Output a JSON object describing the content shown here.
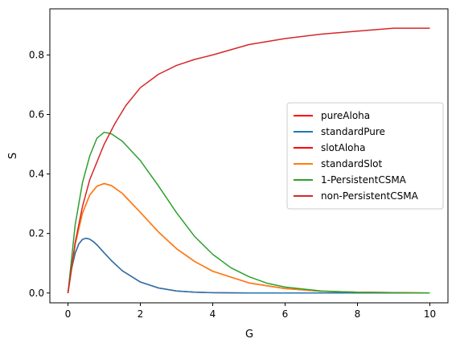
{
  "chart_data": {
    "type": "line",
    "title": "",
    "xlabel": "G",
    "ylabel": "S",
    "xlim": [
      -0.5,
      10.5
    ],
    "ylim": [
      -0.033,
      0.955
    ],
    "xticks": [
      0,
      2,
      4,
      6,
      8,
      10
    ],
    "yticks": [
      0.0,
      0.2,
      0.4,
      0.6,
      0.8
    ],
    "grid": false,
    "legend_position": "center-right",
    "series": [
      {
        "name": "pureAloha",
        "color": "#ff0000",
        "x": [
          0,
          0.1,
          0.2,
          0.3,
          0.4,
          0.5,
          0.6,
          0.7,
          0.8,
          1.0,
          1.2,
          1.5,
          2.0,
          2.5,
          3.0,
          3.5,
          4.0,
          5.0,
          6.0,
          8.0,
          10.0
        ],
        "y": [
          0,
          0.082,
          0.134,
          0.165,
          0.18,
          0.184,
          0.181,
          0.173,
          0.162,
          0.135,
          0.109,
          0.075,
          0.037,
          0.017,
          0.007,
          0.003,
          0.001,
          0.0,
          0.0,
          0.0,
          0.0
        ]
      },
      {
        "name": "standardPure",
        "color": "#1f77b4",
        "x": [
          0,
          0.1,
          0.2,
          0.3,
          0.4,
          0.5,
          0.6,
          0.7,
          0.8,
          1.0,
          1.2,
          1.5,
          2.0,
          2.5,
          3.0,
          3.5,
          4.0,
          5.0,
          6.0,
          8.0,
          10.0
        ],
        "y": [
          0,
          0.082,
          0.134,
          0.165,
          0.18,
          0.184,
          0.181,
          0.173,
          0.162,
          0.135,
          0.109,
          0.075,
          0.037,
          0.017,
          0.007,
          0.003,
          0.001,
          0.0,
          0.0,
          0.0,
          0.0
        ]
      },
      {
        "name": "slotAloha",
        "color": "#ff0000",
        "x": [
          0,
          0.2,
          0.4,
          0.6,
          0.8,
          1.0,
          1.2,
          1.5,
          2.0,
          2.5,
          3.0,
          3.5,
          4.0,
          5.0,
          6.0,
          7.0,
          8.0,
          10.0
        ],
        "y": [
          0,
          0.164,
          0.268,
          0.329,
          0.359,
          0.368,
          0.361,
          0.335,
          0.271,
          0.205,
          0.149,
          0.106,
          0.073,
          0.034,
          0.015,
          0.006,
          0.003,
          0.0
        ]
      },
      {
        "name": "standardSlot",
        "color": "#ff7f0e",
        "x": [
          0,
          0.2,
          0.4,
          0.6,
          0.8,
          1.0,
          1.2,
          1.5,
          2.0,
          2.5,
          3.0,
          3.5,
          4.0,
          5.0,
          6.0,
          7.0,
          8.0,
          10.0
        ],
        "y": [
          0,
          0.164,
          0.268,
          0.329,
          0.359,
          0.368,
          0.361,
          0.335,
          0.271,
          0.205,
          0.149,
          0.106,
          0.073,
          0.034,
          0.015,
          0.006,
          0.003,
          0.0
        ]
      },
      {
        "name": "1-PersistentCSMA",
        "color": "#2ca02c",
        "x": [
          0,
          0.2,
          0.4,
          0.6,
          0.8,
          1.0,
          1.2,
          1.5,
          2.0,
          2.5,
          3.0,
          3.5,
          4.0,
          4.5,
          5.0,
          5.5,
          6.0,
          7.0,
          8.0,
          10.0
        ],
        "y": [
          0,
          0.23,
          0.37,
          0.46,
          0.52,
          0.54,
          0.535,
          0.51,
          0.445,
          0.36,
          0.27,
          0.19,
          0.13,
          0.085,
          0.055,
          0.033,
          0.02,
          0.007,
          0.002,
          0.0
        ]
      },
      {
        "name": "non-PersistentCSMA",
        "color": "#d62728",
        "x": [
          0,
          0.2,
          0.4,
          0.6,
          0.8,
          1.0,
          1.3,
          1.6,
          2.0,
          2.5,
          3.0,
          3.5,
          4.0,
          5.0,
          6.0,
          7.0,
          8.0,
          9.0,
          10.0
        ],
        "y": [
          0,
          0.17,
          0.29,
          0.38,
          0.44,
          0.5,
          0.57,
          0.63,
          0.69,
          0.735,
          0.765,
          0.785,
          0.8,
          0.835,
          0.855,
          0.87,
          0.88,
          0.89,
          0.89
        ]
      }
    ]
  }
}
